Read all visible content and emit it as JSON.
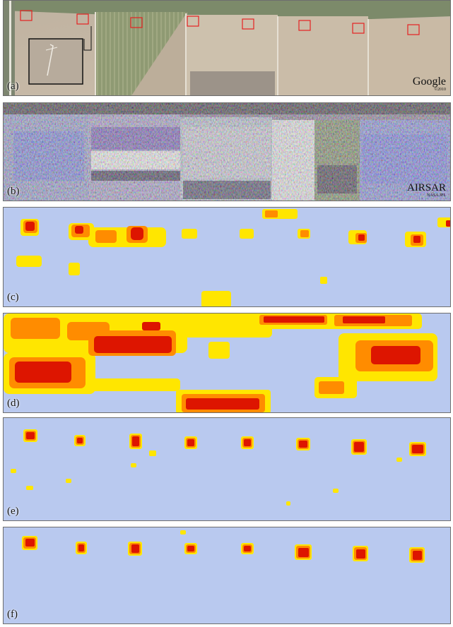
{
  "figure": {
    "panels": [
      {
        "id": "a",
        "label": "(a)",
        "credit": "Google",
        "credit_sub": "©2010"
      },
      {
        "id": "b",
        "label": "(b)",
        "credit": "AIRSAR",
        "credit_sub": "NASA JPL"
      },
      {
        "id": "c",
        "label": "(c)"
      },
      {
        "id": "d",
        "label": "(d)"
      },
      {
        "id": "e",
        "label": "(e)"
      },
      {
        "id": "f",
        "label": "(f)"
      }
    ],
    "colors": {
      "background_blue": "#b9c9ef",
      "detection_yellow": "#ffe600",
      "detection_orange": "#ff8c00",
      "detection_red": "#dd1500",
      "target_box": "#e52222",
      "inset_box": "#111111",
      "field_tan": "#c7b9a6",
      "field_green": "#8c9770"
    },
    "target_count": 8
  }
}
